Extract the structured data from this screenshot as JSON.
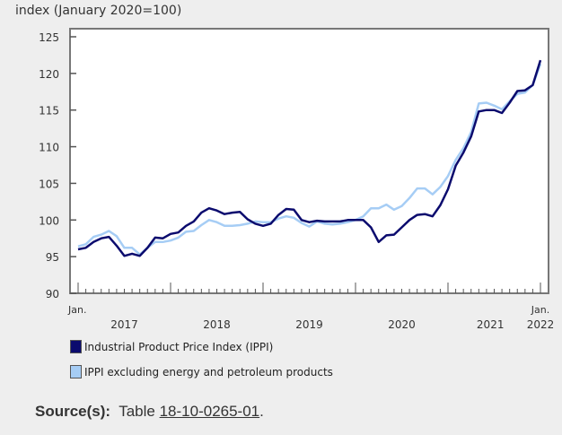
{
  "chart_data": {
    "type": "line",
    "ylabel": "index (January 2020=100)",
    "ylim": [
      90,
      125
    ],
    "yticks": [
      90,
      95,
      100,
      105,
      110,
      115,
      120,
      125
    ],
    "x_start": "2017-01",
    "x_end": "2022-01",
    "x_tick_labels": {
      "start": "Jan.",
      "end_top": "Jan.",
      "years": [
        "2017",
        "2018",
        "2019",
        "2020",
        "2021",
        "2022"
      ]
    },
    "legend_position": "bottom",
    "grid": false,
    "series": [
      {
        "name": "Industrial Product Price Index (IPPI)",
        "color": "#0b0b6e",
        "values": [
          96.0,
          96.2,
          97.0,
          97.5,
          97.7,
          96.5,
          95.1,
          95.4,
          95.1,
          96.2,
          97.6,
          97.5,
          98.1,
          98.3,
          99.2,
          99.8,
          101.0,
          101.6,
          101.3,
          100.8,
          101.0,
          101.1,
          100.1,
          99.5,
          99.2,
          99.5,
          100.7,
          101.5,
          101.4,
          100.0,
          99.7,
          99.9,
          99.8,
          99.8,
          99.8,
          100.0,
          100.0,
          100.0,
          99.0,
          97.0,
          97.9,
          98.0,
          99.0,
          100.0,
          100.7,
          100.8,
          100.5,
          102.0,
          104.2,
          107.4,
          109.2,
          111.4,
          114.8,
          115.0,
          115.0,
          114.6,
          116.0,
          117.6,
          117.7,
          118.4,
          121.8
        ]
      },
      {
        "name": "IPPI excluding energy and petroleum products",
        "color": "#a6cdf5",
        "values": [
          96.4,
          96.7,
          97.7,
          98.0,
          98.5,
          97.8,
          96.2,
          96.2,
          95.3,
          96.2,
          97.0,
          97.0,
          97.2,
          97.6,
          98.4,
          98.5,
          99.3,
          100.0,
          99.7,
          99.2,
          99.2,
          99.3,
          99.5,
          99.8,
          99.7,
          99.7,
          100.2,
          100.5,
          100.3,
          99.6,
          99.1,
          99.8,
          99.5,
          99.4,
          99.5,
          99.7,
          100.0,
          100.5,
          101.6,
          101.6,
          102.1,
          101.4,
          101.9,
          103.0,
          104.3,
          104.3,
          103.5,
          104.5,
          106.0,
          108.2,
          109.8,
          112.0,
          115.9,
          116.0,
          115.6,
          115.1,
          116.2,
          117.2,
          117.4,
          118.4,
          121.3
        ]
      }
    ]
  },
  "source": {
    "label": "Source(s):",
    "prefix": "Table",
    "link": "18-10-0265-01",
    "suffix": "."
  }
}
